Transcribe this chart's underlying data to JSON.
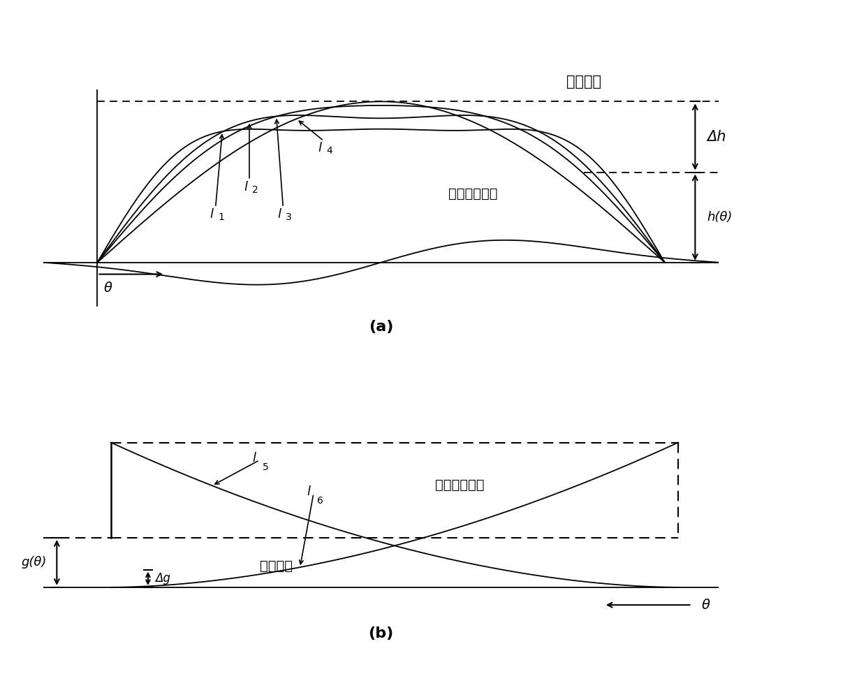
{
  "fig_width": 12.4,
  "fig_height": 9.65,
  "dpi": 100,
  "bg_color": "#ffffff",
  "line_color": "#000000",
  "label_a": "(a)",
  "label_b": "(b)",
  "chinese_airgap": "空气间隙",
  "chinese_iron": "鐵芯或永磁体",
  "delta_h_label": "Δh",
  "h_theta_label": "h(θ)",
  "theta_label": "θ",
  "g_theta_label": "g(θ)",
  "delta_g_label": "Δg",
  "l1": "l",
  "l2": "l",
  "l3": "l",
  "l4": "l",
  "l5": "l",
  "l6": "l",
  "sub1": "1",
  "sub2": "2",
  "sub3": "3",
  "sub4": "4",
  "sub5": "5",
  "sub6": "6"
}
